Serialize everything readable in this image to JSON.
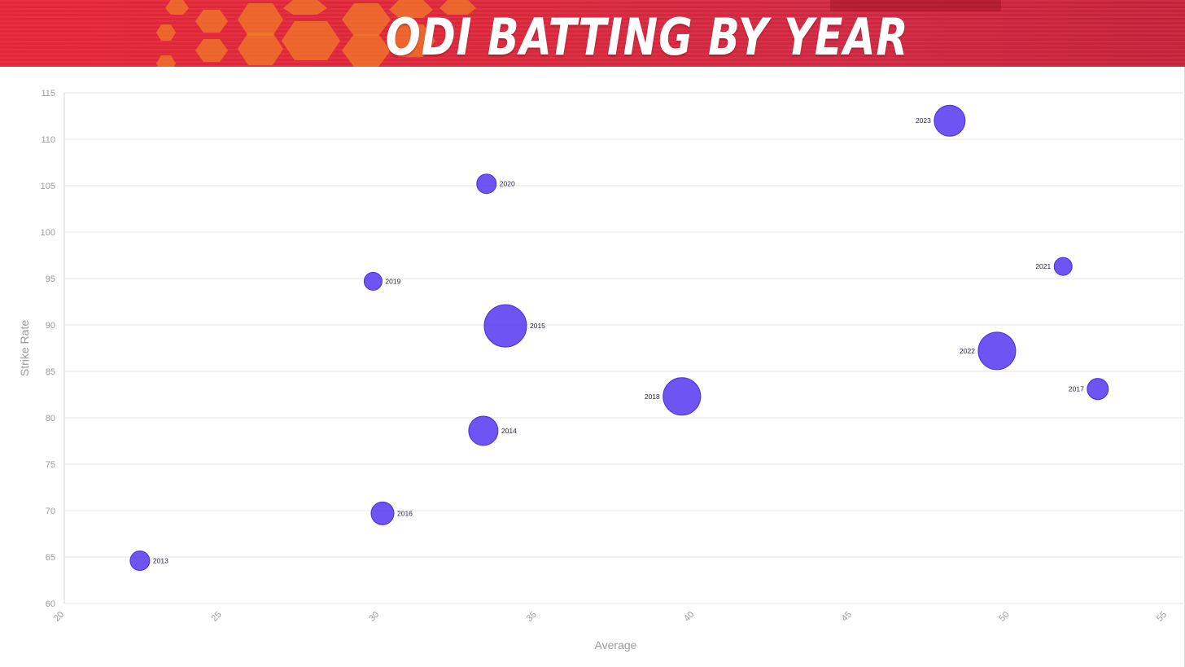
{
  "header": {
    "title": "ODI Batting by Year"
  },
  "colors": {
    "banner_red": "#e02a3e",
    "hex_orange": "#f07a28",
    "bubble_fill": "#5a3cf0",
    "bubble_stroke": "#4a2ed8",
    "grid": "#e4e4e4",
    "tick_text": "#9a9a9a",
    "point_label": "#2a2440"
  },
  "chart_data": {
    "type": "scatter",
    "variant": "bubble",
    "xlabel": "Average",
    "ylabel": "Strike Rate",
    "xlim": [
      20,
      55
    ],
    "ylim": [
      60,
      115
    ],
    "xticks": [
      20,
      25,
      30,
      35,
      40,
      45,
      50,
      55
    ],
    "yticks": [
      60,
      65,
      70,
      75,
      80,
      85,
      90,
      95,
      100,
      105,
      110,
      115
    ],
    "grid": "horizontal",
    "legend": "none",
    "points": [
      {
        "label": "2013",
        "x": 22.4,
        "y": 64.6,
        "size": 12,
        "label_side": "right"
      },
      {
        "label": "2014",
        "x": 33.3,
        "y": 78.6,
        "size": 18,
        "label_side": "right"
      },
      {
        "label": "2015",
        "x": 34.0,
        "y": 89.9,
        "size": 26,
        "label_side": "right"
      },
      {
        "label": "2016",
        "x": 30.1,
        "y": 69.7,
        "size": 14,
        "label_side": "right"
      },
      {
        "label": "2017",
        "x": 52.8,
        "y": 83.1,
        "size": 13,
        "label_side": "left"
      },
      {
        "label": "2018",
        "x": 39.6,
        "y": 82.3,
        "size": 23,
        "label_side": "left"
      },
      {
        "label": "2019",
        "x": 29.8,
        "y": 94.7,
        "size": 11,
        "label_side": "right"
      },
      {
        "label": "2020",
        "x": 33.4,
        "y": 105.2,
        "size": 12,
        "label_side": "right"
      },
      {
        "label": "2021",
        "x": 51.7,
        "y": 96.3,
        "size": 11,
        "label_side": "left"
      },
      {
        "label": "2022",
        "x": 49.6,
        "y": 87.2,
        "size": 23,
        "label_side": "left"
      },
      {
        "label": "2023",
        "x": 48.1,
        "y": 112.0,
        "size": 19,
        "label_side": "left"
      }
    ]
  }
}
